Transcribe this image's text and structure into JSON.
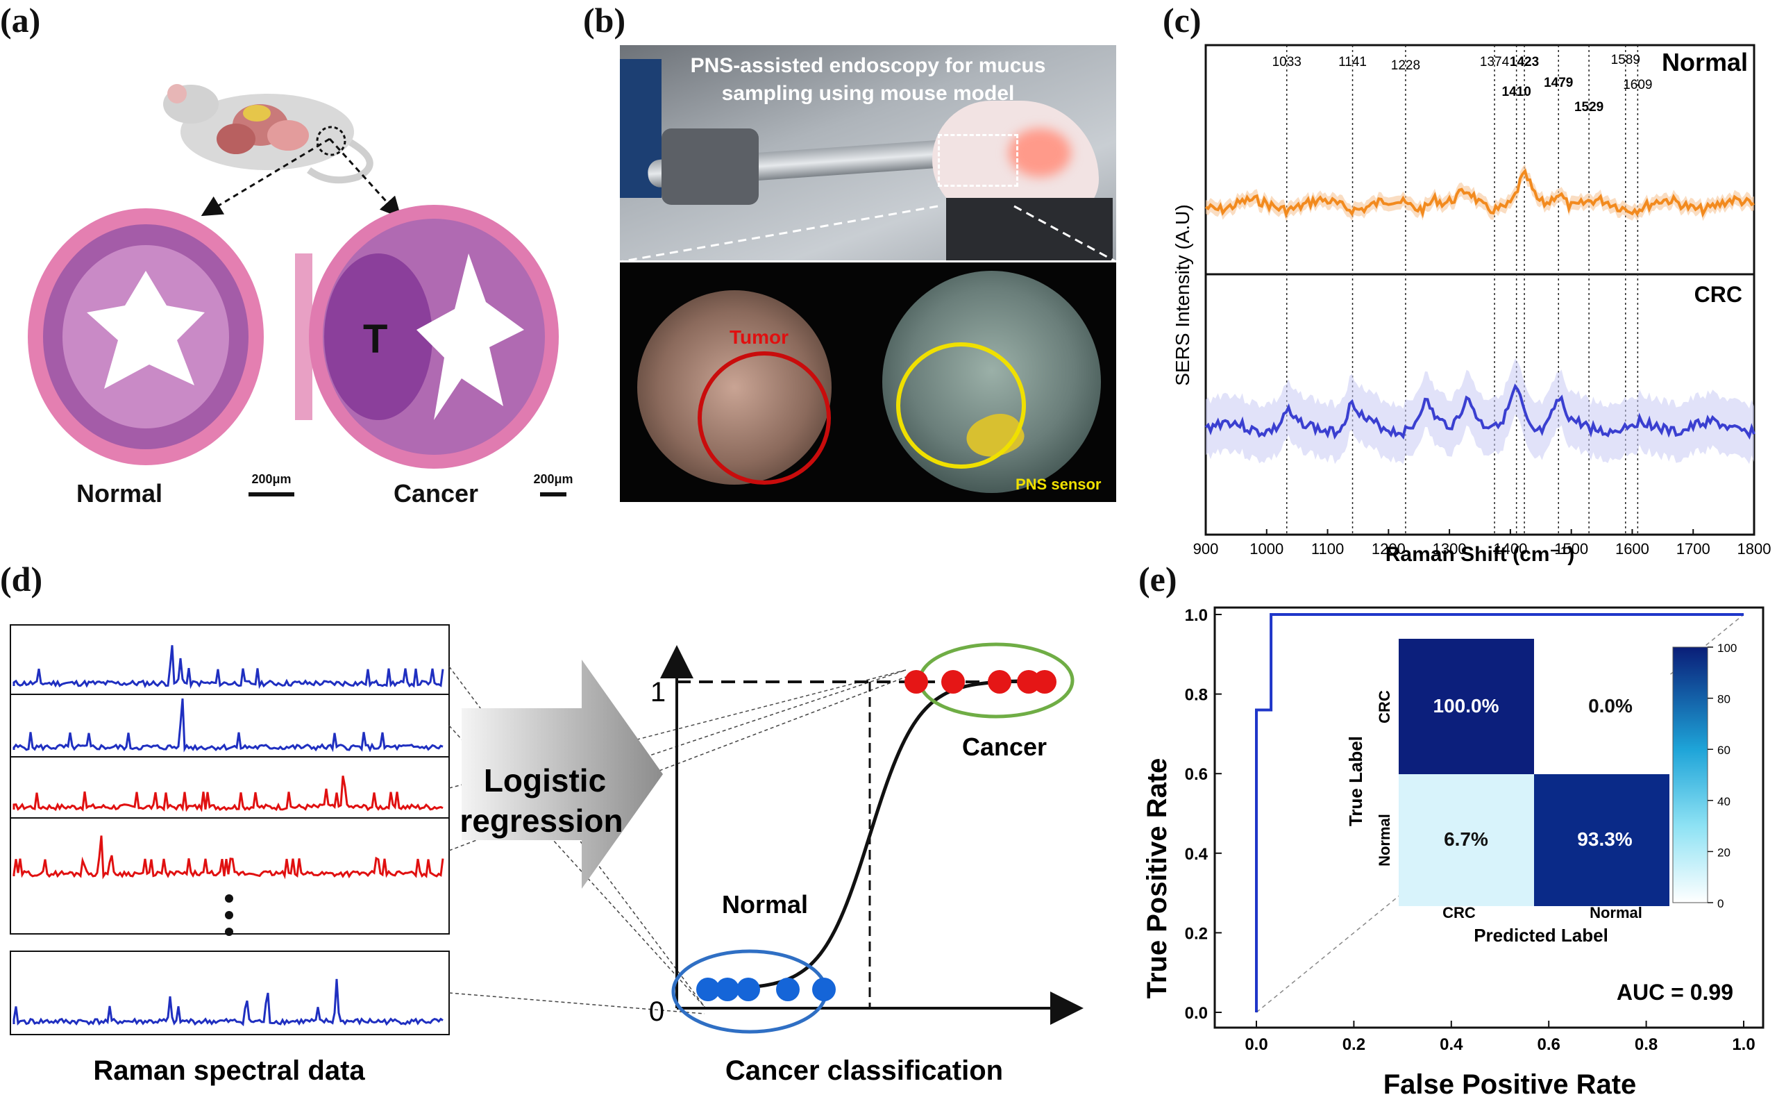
{
  "panels": {
    "a": {
      "label": "(a)",
      "normal_label": "Normal",
      "cancer_label": "Cancer",
      "tumor_label": "T",
      "scale_left": "200μm",
      "scale_right": "200μm"
    },
    "b": {
      "label": "(b)",
      "title_line1": "PNS-assisted endoscopy for mucus",
      "title_line2": "sampling using mouse model",
      "tumor_label": "Tumor",
      "sensor_label": "PNS sensor"
    },
    "c": {
      "label": "(c)",
      "normal_label": "Normal",
      "crc_label": "CRC",
      "ylabel": "SERS Intensity (A.U)",
      "xlabel": "Raman Shift (cm⁻¹)",
      "xticks": [
        "900",
        "1000",
        "1100",
        "1200",
        "1300",
        "1400",
        "1500",
        "1600",
        "1700",
        "1800"
      ],
      "peaks": [
        {
          "text": "1033",
          "x": 1033,
          "bold": false
        },
        {
          "text": "1141",
          "x": 1141,
          "bold": false
        },
        {
          "text": "1228",
          "x": 1228,
          "bold": false
        },
        {
          "text": "1374",
          "x": 1374,
          "bold": false
        },
        {
          "text": "1410",
          "x": 1410,
          "bold": true
        },
        {
          "text": "1423",
          "x": 1423,
          "bold": true
        },
        {
          "text": "1479",
          "x": 1479,
          "bold": true
        },
        {
          "text": "1529",
          "x": 1529,
          "bold": true
        },
        {
          "text": "1589",
          "x": 1589,
          "bold": false
        },
        {
          "text": "1609",
          "x": 1609,
          "bold": false
        }
      ]
    },
    "d": {
      "label": "(d)",
      "spectra_caption": "Raman spectral data",
      "arrow_line1": "Logistic",
      "arrow_line2": "regression",
      "y1": "1",
      "y0": "0",
      "cancer_label": "Cancer",
      "normal_label": "Normal",
      "classification_caption": "Cancer classification"
    },
    "e": {
      "label": "(e)",
      "ylabel": "True Positive Rate",
      "xlabel": "False Positive Rate",
      "xticks": [
        "0.0",
        "0.2",
        "0.4",
        "0.6",
        "0.8",
        "1.0"
      ],
      "yticks": [
        "0.0",
        "0.2",
        "0.4",
        "0.6",
        "0.8",
        "1.0"
      ],
      "auc": "AUC = 0.99",
      "cm_true_label": "True Label",
      "cm_pred_label": "Predicted Label",
      "cm_row_crc": "CRC",
      "cm_row_normal": "Normal",
      "cm_col_crc": "CRC",
      "cm_col_normal": "Normal",
      "cm_cells": [
        "100.0%",
        "0.0%",
        "6.7%",
        "93.3%"
      ],
      "cbar_ticks": [
        "0",
        "20",
        "40",
        "60",
        "80",
        "100"
      ]
    }
  },
  "chart_data": [
    {
      "type": "line",
      "xlabel": "Raman Shift (cm⁻¹)",
      "ylabel": "SERS Intensity (A.U)",
      "xlim": [
        900,
        1800
      ],
      "series": [
        {
          "name": "Normal",
          "color": "#f28a1e"
        },
        {
          "name": "CRC",
          "color": "#3a3fd0"
        }
      ]
    },
    {
      "type": "line",
      "xlabel": "False Positive Rate",
      "ylabel": "True Positive Rate",
      "xlim": [
        0,
        1
      ],
      "ylim": [
        0,
        1
      ],
      "series": [
        {
          "color": "#1f36c9",
          "x": [
            0,
            0.0,
            0.03,
            0.03,
            0.04,
            1.0
          ],
          "y": [
            0,
            0.76,
            0.76,
            1.0,
            1.0,
            1.0
          ]
        }
      ],
      "auc": "AUC = 0.99"
    },
    {
      "type": "heatmap",
      "rows": [
        "CRC",
        "Normal"
      ],
      "columns": [
        "CRC",
        "Normal"
      ],
      "values": [
        [
          100.0,
          0.0
        ],
        [
          6.7,
          93.3
        ]
      ],
      "colorbar_range": [
        0,
        100
      ]
    }
  ]
}
